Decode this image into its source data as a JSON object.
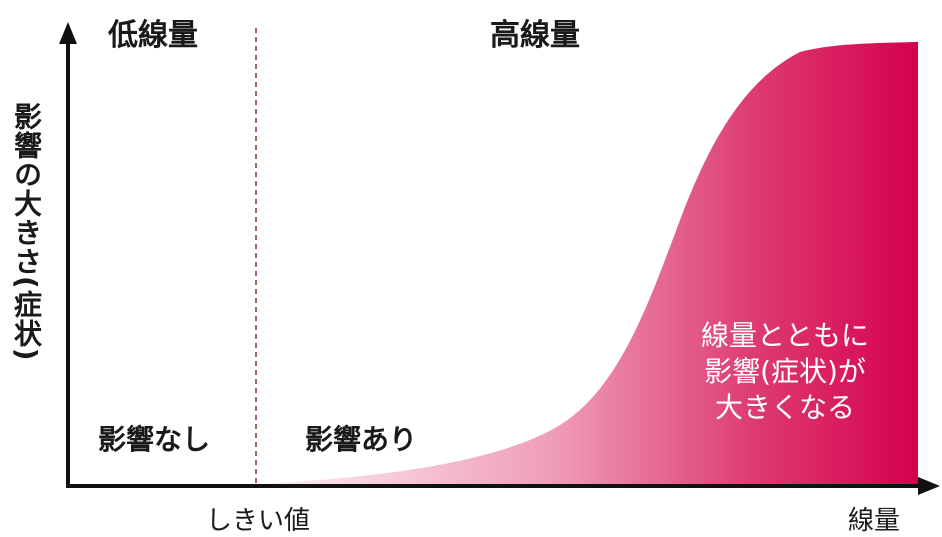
{
  "zones": {
    "low_dose": "低線量",
    "high_dose": "高線量"
  },
  "y_axis_label": "影響の大きさ(症状)",
  "x_axis_label": "線量",
  "threshold_label": "しきい値",
  "region_labels": {
    "no_effect": "影響なし",
    "effect": "影響あり"
  },
  "curve_annotation": {
    "line1": "線量とともに",
    "line2": "影響(症状)が",
    "line3": "大きくなる"
  },
  "colors": {
    "curve_fill_dark": "#d6004e",
    "curve_fill_light": "#fbe3ea",
    "axis": "#111111",
    "threshold_line": "#8b2a2a"
  }
}
